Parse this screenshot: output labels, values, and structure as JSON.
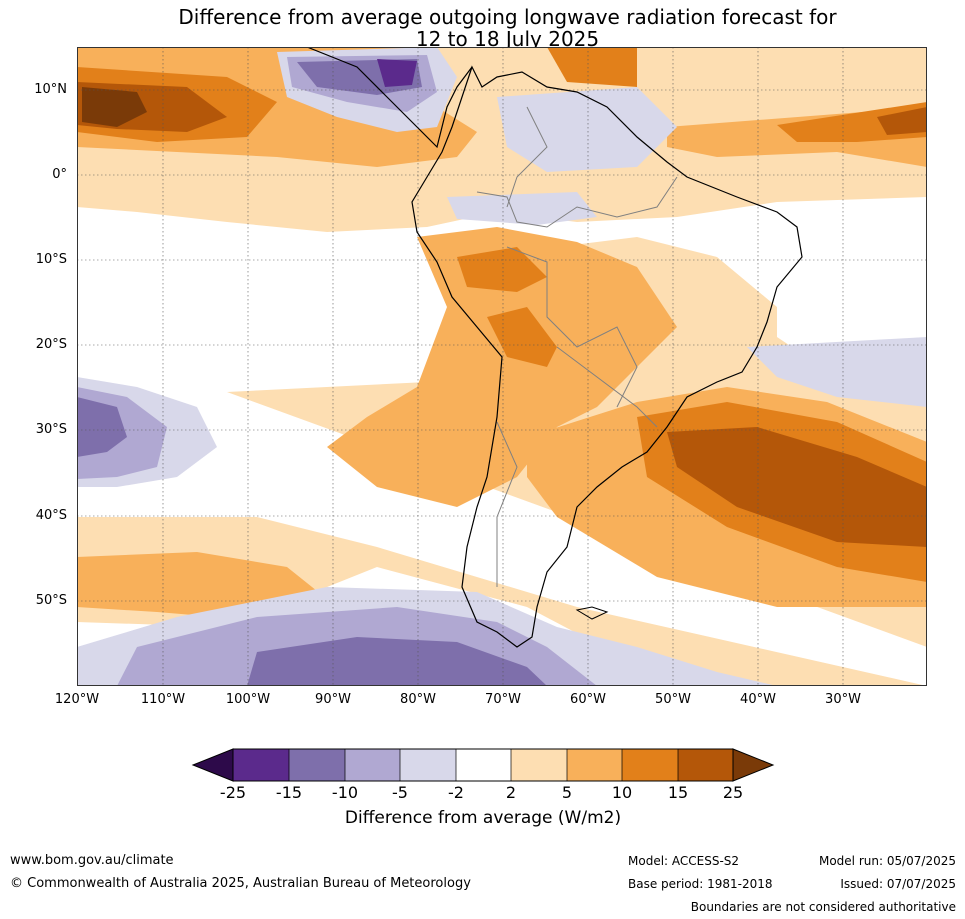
{
  "title": {
    "line1": "Difference from average outgoing longwave radiation forecast for",
    "line2": "12 to 18 July 2025"
  },
  "map": {
    "lat_labels": [
      "10°N",
      "0°",
      "10°S",
      "20°S",
      "30°S",
      "40°S",
      "50°S"
    ],
    "lon_labels": [
      "120°W",
      "110°W",
      "100°W",
      "90°W",
      "80°W",
      "70°W",
      "60°W",
      "50°W",
      "40°W",
      "30°W"
    ],
    "palette": {
      "lt-25": "#2d0a4a",
      "m25_m15": "#5b2a8c",
      "m15_m10": "#7e6fab",
      "m10_m5": "#b0a8d2",
      "m5_m2": "#d8d8ea",
      "m2_2": "#ffffff",
      "p2_5": "#fddeb2",
      "p5_10": "#f8b05a",
      "p10_15": "#e2801a",
      "p15_25": "#b45709",
      "gt25": "#7a3a08"
    }
  },
  "colorbar": {
    "ticks": [
      "-25",
      "-15",
      "-10",
      "-5",
      "-2",
      "2",
      "5",
      "10",
      "15",
      "25"
    ],
    "label": "Difference from average (W/m2)"
  },
  "footer": {
    "website": "www.bom.gov.au/climate",
    "copyright": "© Commonwealth of Australia 2025, Australian Bureau of Meteorology",
    "model": "Model: ACCESS-S2",
    "base_period": "Base period: 1981-2018",
    "model_run": "Model run: 05/07/2025",
    "issued": "Issued: 07/07/2025",
    "disclaimer": "Boundaries are not considered authoritative"
  }
}
